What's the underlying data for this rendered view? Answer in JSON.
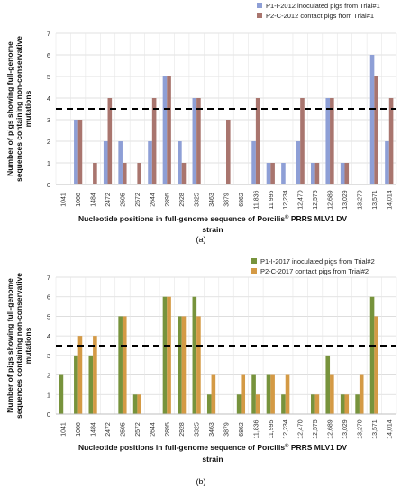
{
  "chart_data": [
    {
      "type": "bar",
      "categories": [
        "1041",
        "1066",
        "1484",
        "2472",
        "2505",
        "2572",
        "2644",
        "2895",
        "2928",
        "3325",
        "3463",
        "3879",
        "6862",
        "11,836",
        "11,995",
        "12,234",
        "12,470",
        "12,575",
        "12,689",
        "13,029",
        "13,270",
        "13,571",
        "14,014"
      ],
      "series": [
        {
          "name": "P1-I-2012 inoculated pigs from Trial#1",
          "color": "#8E9FD6",
          "values": [
            0,
            3,
            0,
            2,
            2,
            0,
            2,
            5,
            2,
            4,
            0,
            0,
            0,
            2,
            1,
            1,
            2,
            1,
            4,
            1,
            0,
            6,
            2
          ]
        },
        {
          "name": "P2-C-2012 contact pigs from Trial#1",
          "color": "#A9756E",
          "values": [
            0,
            3,
            1,
            4,
            1,
            1,
            4,
            5,
            1,
            4,
            0,
            3,
            0,
            4,
            1,
            0,
            4,
            1,
            4,
            1,
            0,
            5,
            4
          ]
        }
      ],
      "ylabel": "Number of pigs showing full-genome sequences containing non-conservative mutations",
      "xlabel_prefix": "Nucleotide positions in full-genome sequence of Porcilis",
      "xlabel_sup": "®",
      "xlabel_suffix": " PRRS MLV1 DV",
      "xlabel_line2": "strain",
      "ylim": [
        0,
        7
      ],
      "yticks": [
        "0",
        "1",
        "2",
        "3",
        "4",
        "5",
        "6",
        "7"
      ],
      "threshold": 3.5,
      "grid": true,
      "legend_position": "top-right",
      "panel_label": "(a)"
    },
    {
      "type": "bar",
      "categories": [
        "1041",
        "1066",
        "1484",
        "2472",
        "2505",
        "2572",
        "2644",
        "2895",
        "2928",
        "3325",
        "3463",
        "3879",
        "6862",
        "11,836",
        "11,995",
        "12,234",
        "12,470",
        "12,575",
        "12,689",
        "13,029",
        "13,270",
        "13,571",
        "14,014"
      ],
      "series": [
        {
          "name": "P1-I-2017 inoculated pigs from Trial#2",
          "color": "#77933C",
          "values": [
            2,
            3,
            3,
            0,
            5,
            1,
            0,
            6,
            5,
            6,
            1,
            0,
            1,
            2,
            2,
            1,
            0,
            1,
            3,
            1,
            1,
            6,
            0
          ]
        },
        {
          "name": "P2-C-2017 contact pigs from Trial#2",
          "color": "#D49A45",
          "values": [
            0,
            4,
            4,
            0,
            5,
            1,
            0,
            6,
            5,
            5,
            2,
            0,
            2,
            1,
            2,
            2,
            0,
            1,
            2,
            1,
            2,
            5,
            0
          ]
        }
      ],
      "ylabel": "Number of pigs showing full-genome sequences containing non-conservative mutations",
      "xlabel_prefix": "Nucleotide positions in full-genome sequence of Porcilis",
      "xlabel_sup": "®",
      "xlabel_suffix": " PRRS MLV1 DV",
      "xlabel_line2": "strain",
      "ylim": [
        0,
        7
      ],
      "yticks": [
        "0",
        "1",
        "2",
        "3",
        "4",
        "5",
        "6",
        "7"
      ],
      "threshold": 3.5,
      "grid": true,
      "legend_position": "top-right",
      "panel_label": "(b)"
    }
  ]
}
